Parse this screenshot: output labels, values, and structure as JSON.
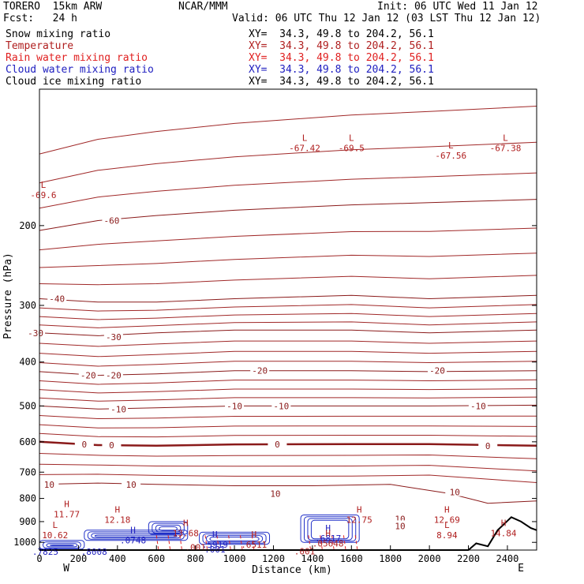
{
  "header": {
    "model": "TORERO  15km ARW",
    "center": "NCAR/MMM",
    "init": "Init: 06 UTC Wed 11 Jan 12",
    "fcst": "Fcst:   24 h",
    "valid": "Valid: 06 UTC Thu 12 Jan 12 (03 LST Thu 12 Jan 12)"
  },
  "legend": [
    {
      "label": "Snow mixing ratio",
      "xy": "XY=  34.3, 49.8 to 204.2, 56.1",
      "color": "#000000"
    },
    {
      "label": "Temperature",
      "xy": "XY=  34.3, 49.8 to 204.2, 56.1",
      "color": "#b02020"
    },
    {
      "label": "Rain water mixing ratio",
      "xy": "XY=  34.3, 49.8 to 204.2, 56.1",
      "color": "#e02020"
    },
    {
      "label": "Cloud water mixing ratio",
      "xy": "XY=  34.3, 49.8 to 204.2, 56.1",
      "color": "#2020c0"
    },
    {
      "label": "Cloud ice mixing ratio",
      "xy": "XY=  34.3, 49.8 to 204.2, 56.1",
      "color": "#000000"
    }
  ],
  "chart_data": {
    "type": "contour",
    "xlabel": "Distance (km)",
    "ylabel": "Pressure (hPa)",
    "xlim": [
      0,
      2550
    ],
    "ylim": [
      1040,
      100
    ],
    "xticks": [
      0,
      200,
      400,
      600,
      800,
      1000,
      1200,
      1400,
      1600,
      1800,
      2000,
      2200,
      2400
    ],
    "yticks": [
      200,
      300,
      400,
      500,
      600,
      700,
      800,
      900,
      1000
    ],
    "x_end_labels": {
      "left": "W",
      "right": "E"
    },
    "temperature_isotherms": [
      {
        "label": "-60",
        "points": [
          [
            0,
            205
          ],
          [
            300,
            195
          ],
          [
            600,
            190
          ],
          [
            1000,
            185
          ],
          [
            1600,
            180
          ],
          [
            2000,
            178
          ],
          [
            2550,
            175
          ]
        ],
        "labels_at": [
          [
            370,
            195
          ]
        ]
      },
      {
        "label": "-40",
        "points": [
          [
            0,
            290
          ],
          [
            300,
            295
          ],
          [
            600,
            295
          ],
          [
            1000,
            290
          ],
          [
            1600,
            285
          ],
          [
            2000,
            290
          ],
          [
            2550,
            285
          ]
        ],
        "labels_at": [
          [
            90,
            290
          ]
        ]
      },
      {
        "label": "-30",
        "points": [
          [
            0,
            345
          ],
          [
            300,
            350
          ],
          [
            600,
            345
          ],
          [
            1000,
            340
          ],
          [
            1600,
            340
          ],
          [
            2000,
            345
          ],
          [
            2550,
            340
          ]
        ],
        "labels_at": [
          [
            -20,
            345
          ],
          [
            380,
            352
          ]
        ]
      },
      {
        "label": "-20",
        "points": [
          [
            0,
            420
          ],
          [
            300,
            428
          ],
          [
            600,
            425
          ],
          [
            1000,
            418
          ],
          [
            1600,
            418
          ],
          [
            2000,
            420
          ],
          [
            2550,
            418
          ]
        ],
        "labels_at": [
          [
            250,
            428
          ],
          [
            380,
            428
          ],
          [
            1130,
            418
          ],
          [
            2040,
            418
          ]
        ]
      },
      {
        "label": "-10",
        "points": [
          [
            0,
            500
          ],
          [
            300,
            508
          ],
          [
            600,
            505
          ],
          [
            1000,
            500
          ],
          [
            1600,
            500
          ],
          [
            2000,
            500
          ],
          [
            2550,
            498
          ]
        ],
        "labels_at": [
          [
            405,
            508
          ],
          [
            1000,
            500
          ],
          [
            1240,
            500
          ],
          [
            2250,
            500
          ]
        ]
      },
      {
        "label": "0",
        "points": [
          [
            0,
            600
          ],
          [
            300,
            610
          ],
          [
            600,
            612
          ],
          [
            1000,
            608
          ],
          [
            1600,
            607
          ],
          [
            2000,
            607
          ],
          [
            2550,
            612
          ]
        ],
        "labels_at": [
          [
            230,
            608
          ],
          [
            370,
            610
          ],
          [
            1220,
            608
          ],
          [
            2300,
            612
          ]
        ]
      },
      {
        "label": "10",
        "points": [
          [
            0,
            745
          ],
          [
            300,
            740
          ],
          [
            600,
            745
          ],
          [
            1000,
            750
          ],
          [
            1400,
            750
          ],
          [
            1800,
            745
          ],
          [
            2100,
            780
          ],
          [
            2300,
            820
          ],
          [
            2550,
            810
          ]
        ],
        "labels_at": [
          [
            50,
            745
          ],
          [
            470,
            745
          ],
          [
            1210,
            780
          ],
          [
            2130,
            775
          ],
          [
            1850,
            888
          ],
          [
            1850,
            920
          ]
        ]
      }
    ],
    "maxima_minima": [
      {
        "type": "H",
        "value": "11.77",
        "x": 140,
        "p": 835,
        "color": "#b02020"
      },
      {
        "type": "H",
        "value": "12.18",
        "x": 400,
        "p": 860,
        "color": "#b02020"
      },
      {
        "type": "H",
        "value": "13.68",
        "x": 750,
        "p": 920,
        "color": "#b02020"
      },
      {
        "type": "H",
        "value": "12.75",
        "x": 1640,
        "p": 860,
        "color": "#b02020"
      },
      {
        "type": "H",
        "value": "12.69",
        "x": 2090,
        "p": 860,
        "color": "#b02020"
      },
      {
        "type": "H",
        "value": "14.84",
        "x": 2380,
        "p": 920,
        "color": "#b02020"
      },
      {
        "type": "L",
        "value": "10.62",
        "x": 80,
        "p": 930,
        "color": "#b02020"
      },
      {
        "type": "L",
        "value": "8.94",
        "x": 2090,
        "p": 930,
        "color": "#b02020"
      },
      {
        "type": "L",
        "value": "-67.56",
        "x": 2110,
        "p": 135,
        "color": "#b02020"
      },
      {
        "type": "L",
        "value": "-67.38",
        "x": 2390,
        "p": 130,
        "color": "#b02020"
      },
      {
        "type": "L",
        "value": "-67.42",
        "x": 1360,
        "p": 130,
        "color": "#b02020"
      },
      {
        "type": "L",
        "value": "-69.5",
        "x": 1600,
        "p": 130,
        "color": "#b02020"
      },
      {
        "type": "L",
        "value": "-69.6",
        "x": 20,
        "p": 165,
        "color": "#b02020"
      },
      {
        "type": "H",
        "value": ".5919",
        "x": 900,
        "p": 975,
        "color": "#2020c0"
      },
      {
        "type": "H",
        "value": ".6817",
        "x": 1480,
        "p": 945,
        "color": "#2020c0"
      },
      {
        "type": "H",
        "value": ".0748",
        "x": 480,
        "p": 955,
        "color": "#2020c0"
      },
      {
        "type": "H",
        "value": ".05648",
        "x": 1480,
        "p": 970,
        "color": "#b02020"
      },
      {
        "type": "H",
        "value": ".6511",
        "x": 1100,
        "p": 975,
        "color": "#b02020"
      },
      {
        "type": "",
        "value": ".001",
        "x": 900,
        "p": 1000,
        "color": "#2020c0"
      },
      {
        "type": "",
        "value": ".001",
        "x": 800,
        "p": 990,
        "color": "#b02020"
      },
      {
        "type": "",
        "value": ".001",
        "x": 1360,
        "p": 1010,
        "color": "#b02020"
      },
      {
        "type": "",
        "value": ".7825",
        "x": 30,
        "p": 1012,
        "color": "#2020c0"
      },
      {
        "type": "",
        "value": ".8008",
        "x": 280,
        "p": 1012,
        "color": "#2020c0"
      }
    ],
    "terrain": [
      [
        0,
        1040
      ],
      [
        2200,
        1040
      ],
      [
        2240,
        1005
      ],
      [
        2300,
        1020
      ],
      [
        2350,
        940
      ],
      [
        2420,
        880
      ],
      [
        2470,
        900
      ],
      [
        2520,
        930
      ],
      [
        2550,
        940
      ]
    ]
  }
}
